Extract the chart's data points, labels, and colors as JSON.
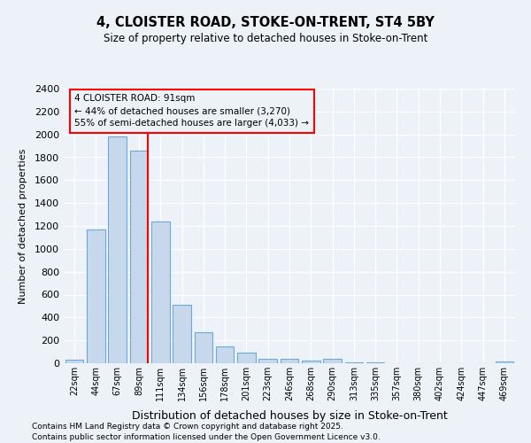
{
  "title1": "4, CLOISTER ROAD, STOKE-ON-TRENT, ST4 5BY",
  "title2": "Size of property relative to detached houses in Stoke-on-Trent",
  "xlabel": "Distribution of detached houses by size in Stoke-on-Trent",
  "ylabel": "Number of detached properties",
  "bins": [
    "22sqm",
    "44sqm",
    "67sqm",
    "89sqm",
    "111sqm",
    "134sqm",
    "156sqm",
    "178sqm",
    "201sqm",
    "223sqm",
    "246sqm",
    "268sqm",
    "290sqm",
    "313sqm",
    "335sqm",
    "357sqm",
    "380sqm",
    "402sqm",
    "424sqm",
    "447sqm",
    "469sqm"
  ],
  "values": [
    30,
    1170,
    1980,
    1860,
    1240,
    510,
    270,
    150,
    90,
    40,
    40,
    20,
    40,
    10,
    5,
    3,
    3,
    3,
    3,
    3,
    15
  ],
  "bar_color": "#c8d8ec",
  "bar_edge_color": "#6aaad4",
  "red_line_bin": 3,
  "annotation_title": "4 CLOISTER ROAD: 91sqm",
  "annotation_line1": "← 44% of detached houses are smaller (3,270)",
  "annotation_line2": "55% of semi-detached houses are larger (4,033) →",
  "ylim": [
    0,
    2400
  ],
  "yticks": [
    0,
    200,
    400,
    600,
    800,
    1000,
    1200,
    1400,
    1600,
    1800,
    2000,
    2200,
    2400
  ],
  "bg_color": "#edf2f9",
  "grid_color": "#ffffff",
  "footer1": "Contains HM Land Registry data © Crown copyright and database right 2025.",
  "footer2": "Contains public sector information licensed under the Open Government Licence v3.0."
}
